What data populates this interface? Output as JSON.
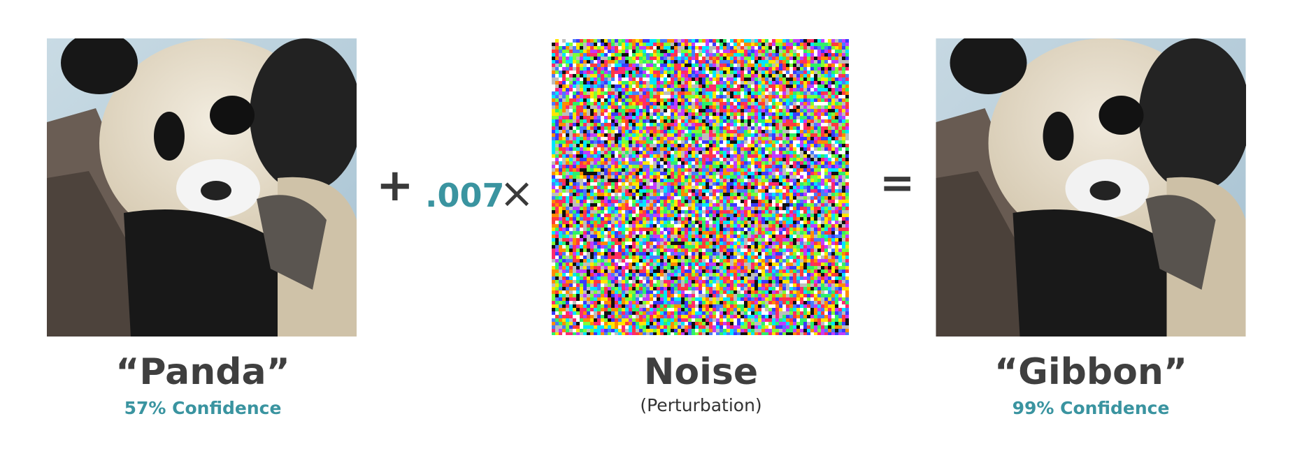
{
  "panels": {
    "left": {
      "caption": "“Panda”",
      "confidence": "57% Confidence"
    },
    "middle": {
      "caption": "Noise",
      "subcaption": "(Perturbation)"
    },
    "right": {
      "caption": "“Gibbon”",
      "confidence": "99% Confidence"
    }
  },
  "operators": {
    "plus": "+",
    "coefficient": ".007",
    "times": "×",
    "equals": "="
  },
  "colors": {
    "accent": "#3a94a0",
    "text": "#3f3f3f"
  }
}
